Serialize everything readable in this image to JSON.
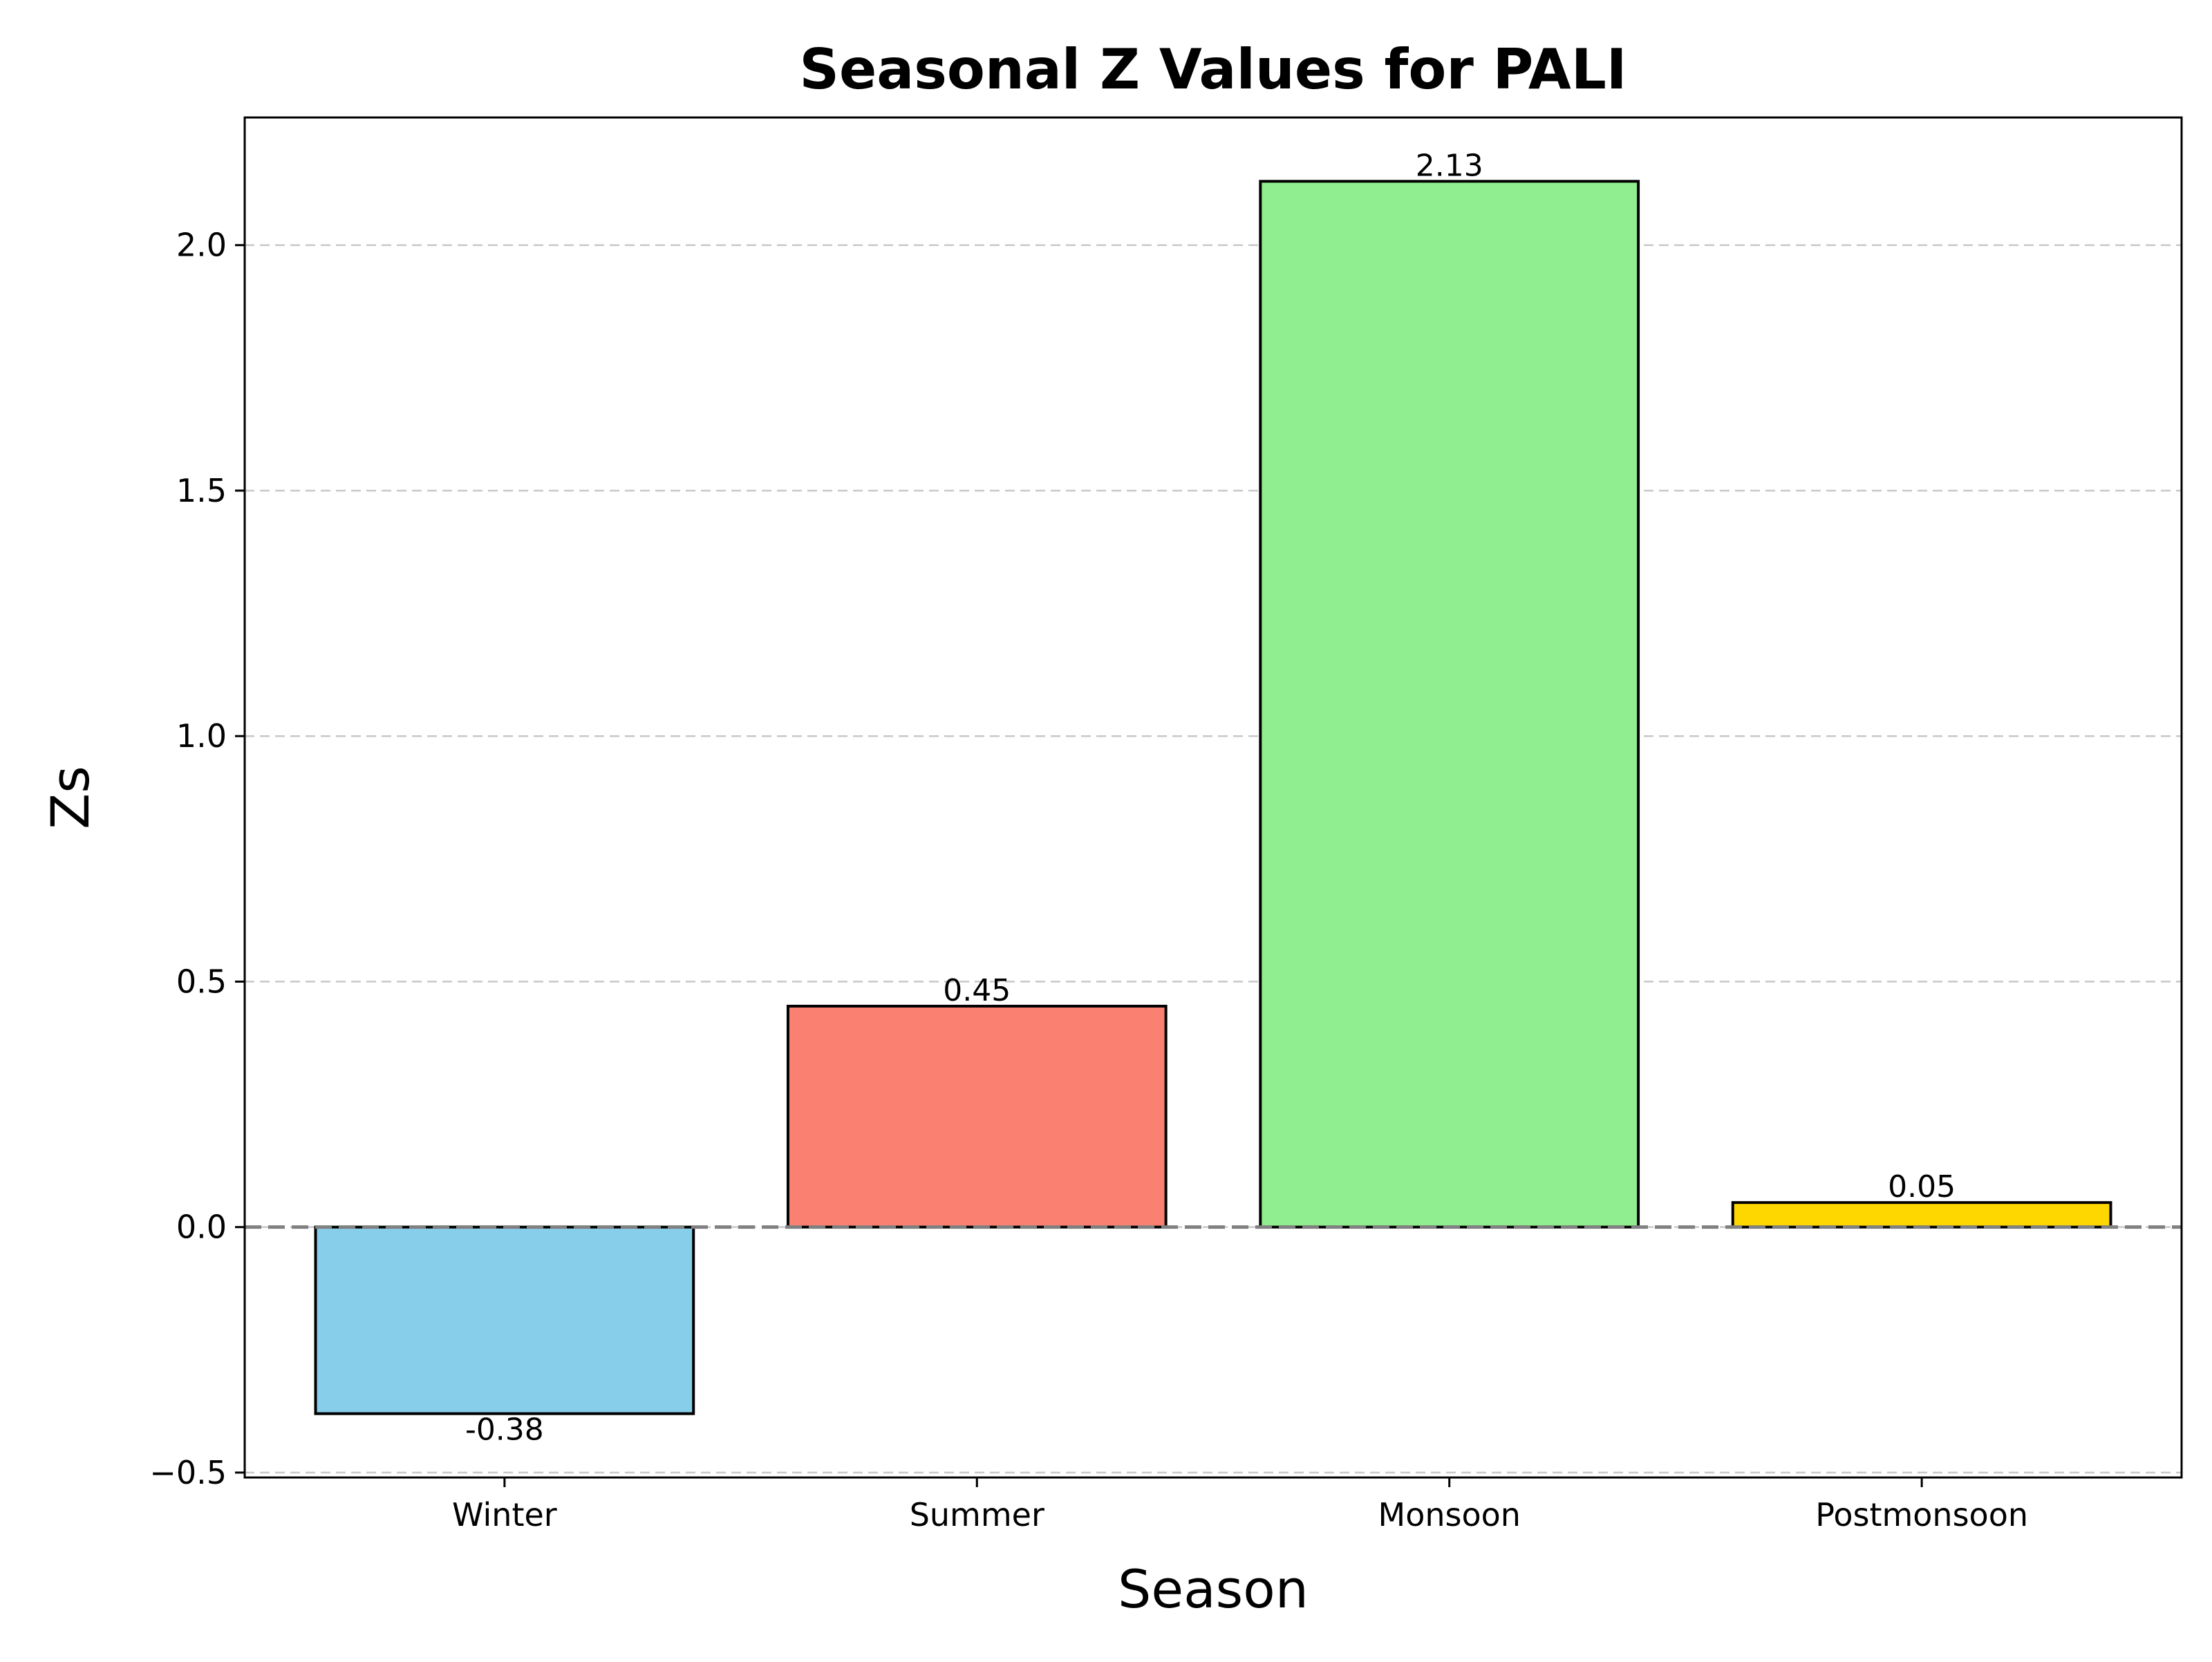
{
  "chart_data": {
    "type": "bar",
    "title": "Seasonal Z Values for PALI",
    "xlabel": "Season",
    "ylabel": "Zs",
    "categories": [
      "Winter",
      "Summer",
      "Monsoon",
      "Postmonsoon"
    ],
    "values": [
      -0.38,
      0.45,
      2.13,
      0.05
    ],
    "value_labels": [
      "-0.38",
      "0.45",
      "2.13",
      "0.05"
    ],
    "bar_colors": [
      "#87ceeb",
      "#fa8072",
      "#90ee90",
      "#ffd700"
    ],
    "bar_edge_color": "#000000",
    "ylim": [
      -0.51,
      2.26
    ],
    "yticks": [
      -0.5,
      0.0,
      0.5,
      1.0,
      1.5,
      2.0
    ],
    "ytick_labels": [
      "−0.5",
      "0.0",
      "0.5",
      "1.0",
      "1.5",
      "2.0"
    ],
    "grid": {
      "axis": "y",
      "style": "dashed",
      "color": "#c8c8c8"
    },
    "zero_line": {
      "value": 0,
      "style": "dashed",
      "color": "#808080"
    },
    "legend": "none"
  }
}
